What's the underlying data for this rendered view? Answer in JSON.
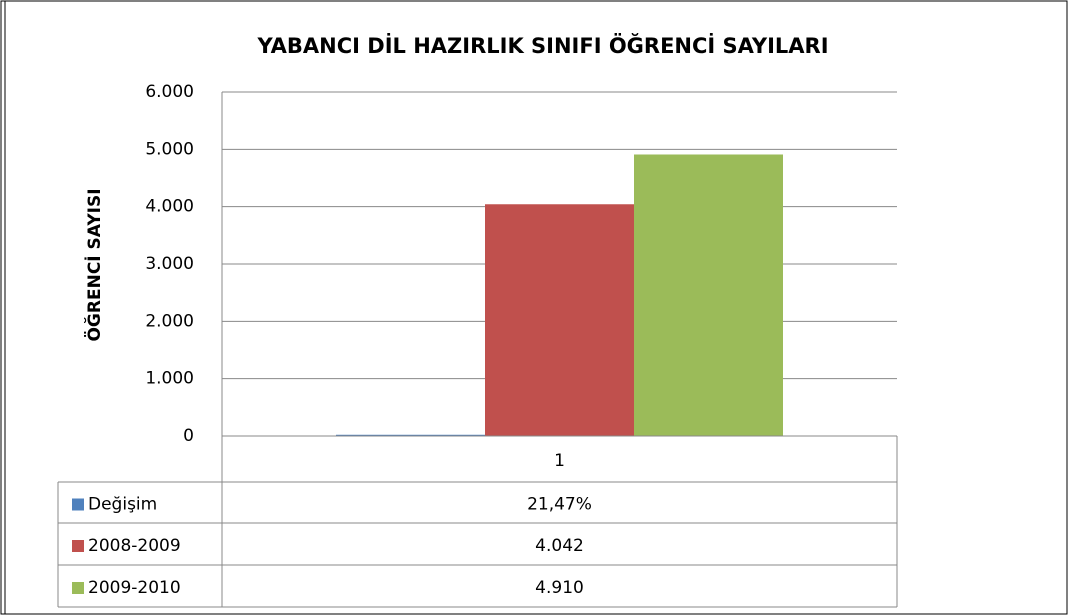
{
  "chart_data": {
    "type": "bar",
    "title": "YABANCI DİL HAZIRLIK SINIFI ÖĞRENCİ SAYILARI",
    "y_label": "ÖĞRENCİ SAYISI",
    "categories": [
      "1"
    ],
    "series": [
      {
        "name": "Değişim",
        "color": "#4f81bd",
        "values": [
          21.47
        ],
        "value_labels": [
          "21,47%"
        ]
      },
      {
        "name": "2008-2009",
        "color": "#c0504d",
        "values": [
          4042
        ],
        "value_labels": [
          "4.042"
        ]
      },
      {
        "name": "2009-2010",
        "color": "#9bbb59",
        "values": [
          4910
        ],
        "value_labels": [
          "4.910"
        ]
      }
    ],
    "ylim": [
      0,
      6000
    ],
    "yticks": [
      0,
      {
        "value": 1000,
        "label": "1.000"
      },
      {
        "value": 2000,
        "label": "2.000"
      },
      {
        "value": 3000,
        "label": "3.000"
      },
      {
        "value": 4000,
        "label": "4.000"
      },
      {
        "value": 5000,
        "label": "5.000"
      },
      {
        "value": 6000,
        "label": "6.000"
      }
    ],
    "grid": true
  }
}
